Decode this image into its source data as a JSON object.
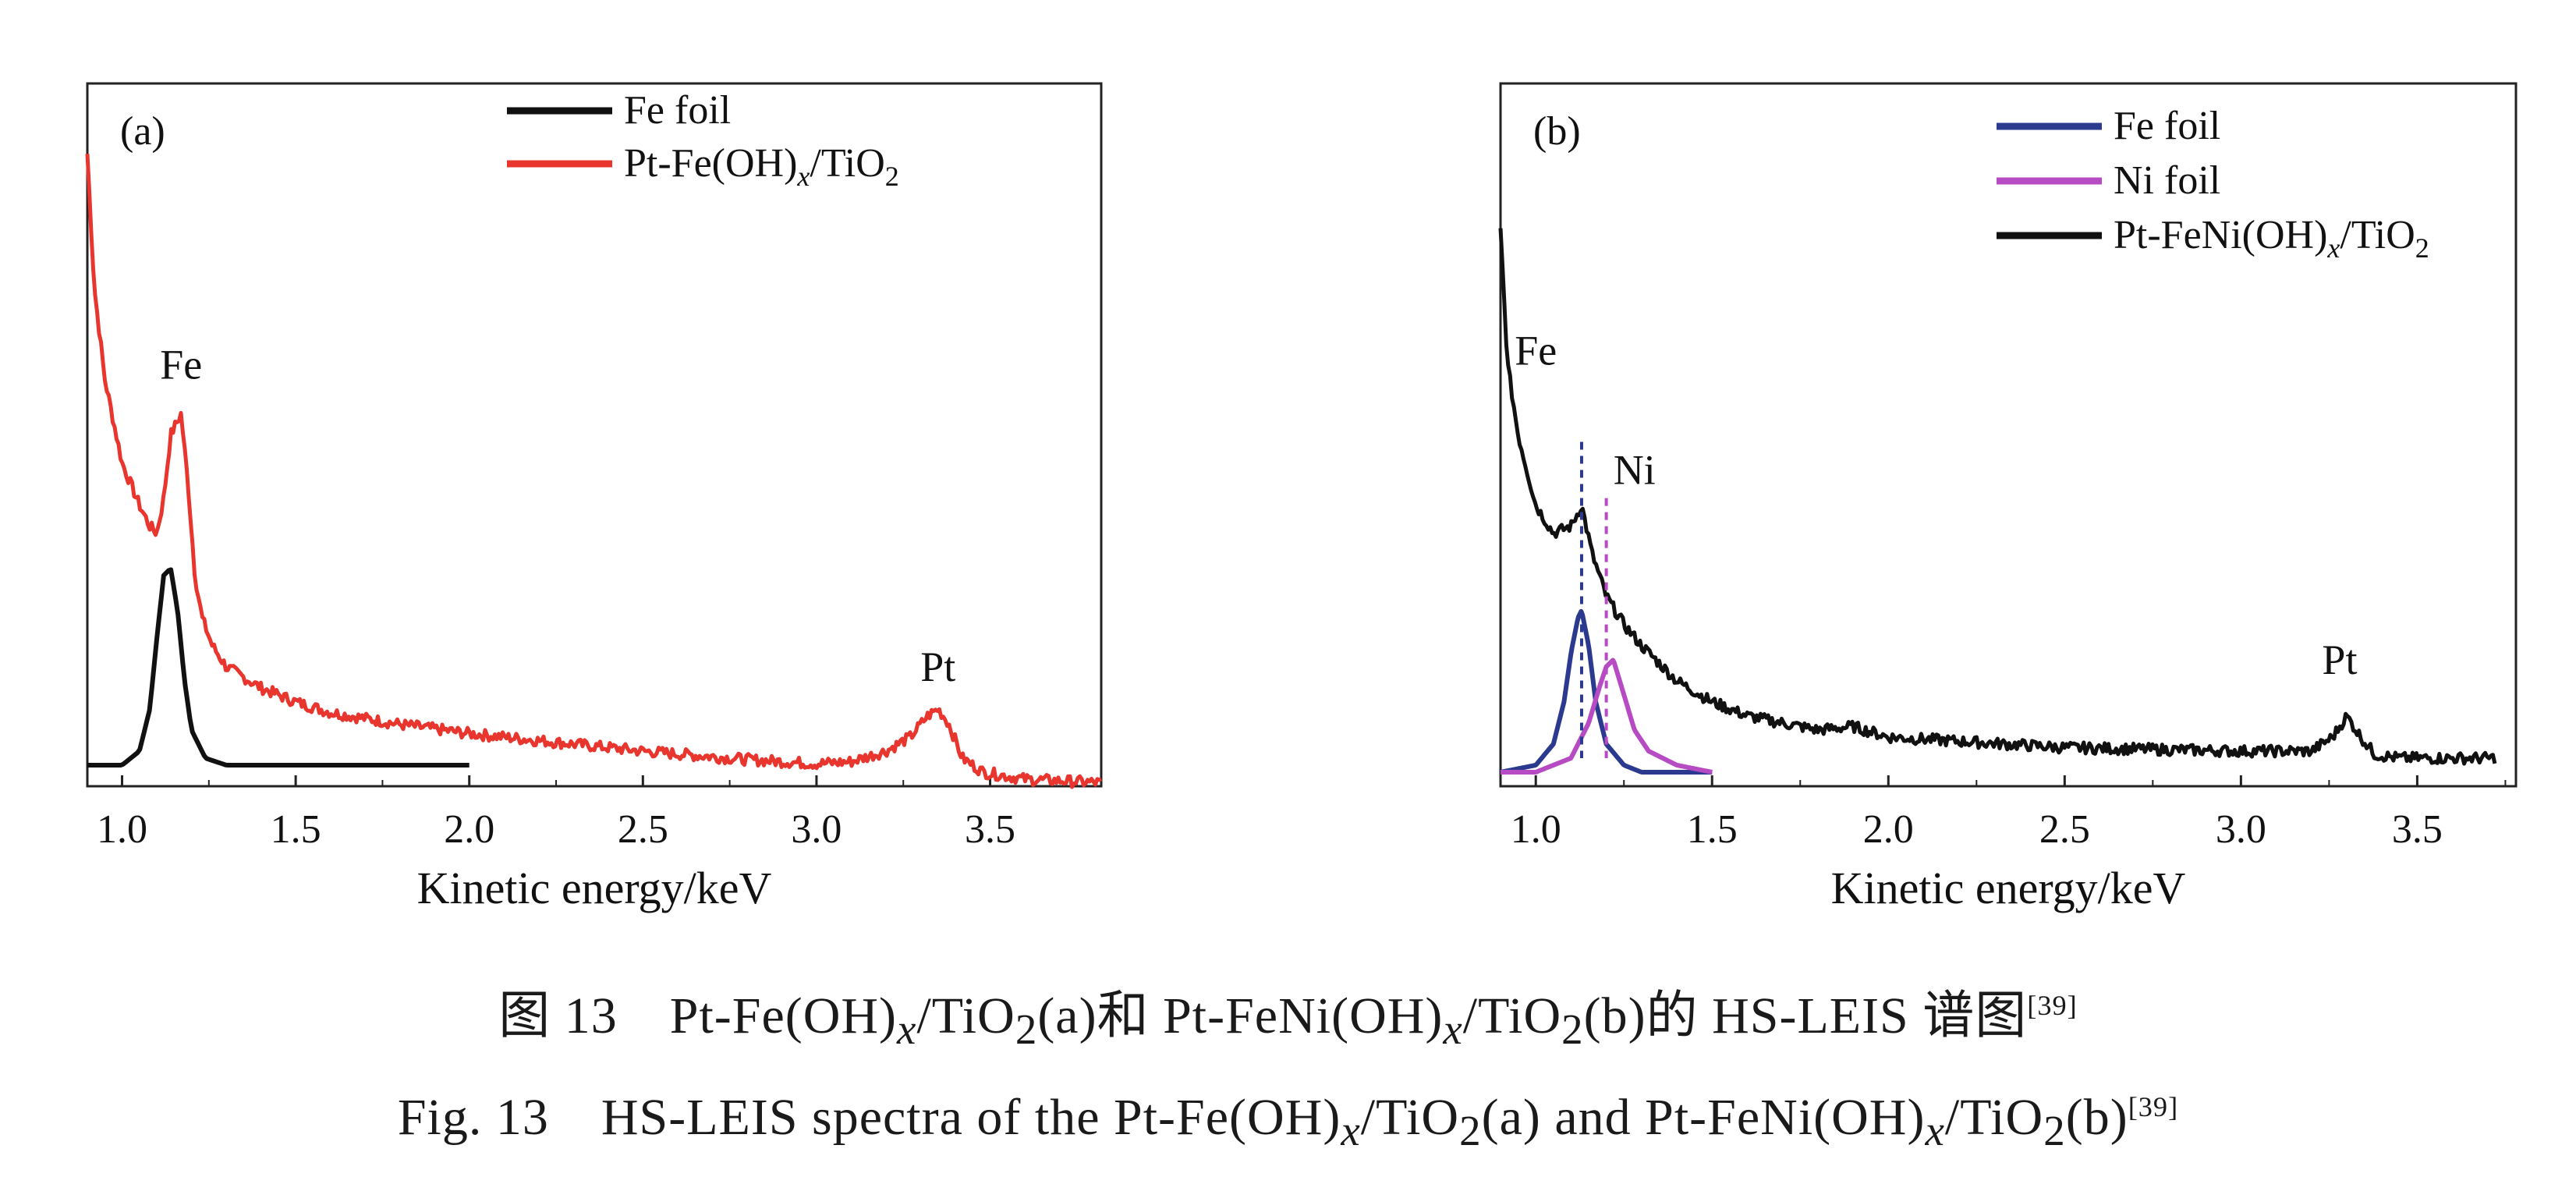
{
  "chart_data": [
    {
      "type": "line",
      "panel_label": "(a)",
      "xlabel": "Kinetic energy/keV",
      "ylabel": "",
      "xlim": [
        0.9,
        3.82
      ],
      "ylim": [
        0,
        100
      ],
      "xticks": [
        1.0,
        1.5,
        2.0,
        2.5,
        3.0,
        3.5
      ],
      "xtick_labels": [
        "1.0",
        "1.5",
        "2.0",
        "2.5",
        "3.0",
        "3.5"
      ],
      "grid": false,
      "legend_position": "top-center",
      "legend_entries": [
        {
          "series": "Fe foil",
          "text_main": "Fe foil",
          "sub1": "",
          "mid": "",
          "sub2": ""
        },
        {
          "series": "Pt-Fe(OH)x/TiO2",
          "text_main": "Pt-Fe(OH)",
          "sub1": "x",
          "mid": "/TiO",
          "sub2": "2"
        }
      ],
      "series": [
        {
          "name": "Fe foil",
          "color": "#111111",
          "x": [
            0.9,
            1.0,
            1.05,
            1.08,
            1.1,
            1.12,
            1.14,
            1.16,
            1.18,
            1.2,
            1.24,
            1.3,
            1.5,
            2.0
          ],
          "y": [
            3,
            3,
            5,
            11,
            21,
            30,
            31,
            25,
            15,
            8,
            4,
            3,
            3,
            3
          ]
        },
        {
          "name": "Pt-Fe(OH)x/TiO2",
          "color": "#e8362e",
          "noisy": true,
          "x": [
            0.9,
            0.92,
            0.95,
            1.0,
            1.05,
            1.08,
            1.1,
            1.12,
            1.14,
            1.17,
            1.19,
            1.21,
            1.23,
            1.26,
            1.3,
            1.4,
            1.5,
            1.6,
            1.8,
            2.0,
            2.2,
            2.5,
            2.8,
            3.0,
            3.1,
            3.2,
            3.27,
            3.32,
            3.35,
            3.38,
            3.42,
            3.48,
            3.6,
            3.82
          ],
          "y": [
            90,
            71,
            58,
            46,
            40,
            37,
            36,
            41,
            50,
            53,
            43,
            30,
            24,
            20,
            17,
            14,
            12,
            10.5,
            8.8,
            7.5,
            6.5,
            5,
            3.8,
            3.2,
            3.5,
            5,
            7,
            10,
            11,
            9,
            4,
            2,
            1,
            0.5
          ]
        }
      ],
      "annotations": [
        {
          "text": "Fe",
          "x": 1.17,
          "y": 58
        },
        {
          "text": "Pt",
          "x": 3.35,
          "y": 15
        }
      ]
    },
    {
      "type": "line",
      "panel_label": "(b)",
      "xlabel": "Kinetic energy/keV",
      "ylabel": "",
      "xlim": [
        0.9,
        3.78
      ],
      "ylim": [
        0,
        100
      ],
      "xticks": [
        1.0,
        1.5,
        2.0,
        2.5,
        3.0,
        3.5
      ],
      "xtick_labels": [
        "1.0",
        "1.5",
        "2.0",
        "2.5",
        "3.0",
        "3.5"
      ],
      "grid": false,
      "legend_position": "top-right",
      "legend_entries": [
        {
          "series": "Fe foil",
          "text_main": "Fe foil",
          "sub1": "",
          "mid": "",
          "sub2": ""
        },
        {
          "series": "Ni foil",
          "text_main": "Ni foil",
          "sub1": "",
          "mid": "",
          "sub2": ""
        },
        {
          "series": "Pt-FeNi(OH)x/TiO2",
          "text_main": "Pt-FeNi(OH)",
          "sub1": "x",
          "mid": "/TiO",
          "sub2": "2"
        }
      ],
      "series": [
        {
          "name": "Fe foil",
          "color": "#2b3a8f",
          "x": [
            0.9,
            1.0,
            1.05,
            1.08,
            1.1,
            1.12,
            1.13,
            1.15,
            1.17,
            1.2,
            1.25,
            1.3,
            1.5
          ],
          "y": [
            2,
            3,
            6,
            12,
            19,
            24,
            25,
            20,
            12,
            6,
            3,
            2,
            2
          ]
        },
        {
          "name": "Ni foil",
          "color": "#b64bc3",
          "x": [
            0.9,
            1.0,
            1.1,
            1.15,
            1.18,
            1.2,
            1.22,
            1.25,
            1.28,
            1.32,
            1.4,
            1.5
          ],
          "y": [
            2,
            2,
            4,
            9,
            14,
            17,
            18,
            13,
            8,
            5,
            3,
            2
          ]
        },
        {
          "name": "Pt-FeNi(OH)x/TiO2",
          "color": "#111111",
          "noisy": true,
          "x": [
            0.9,
            0.92,
            0.95,
            1.0,
            1.05,
            1.1,
            1.13,
            1.16,
            1.2,
            1.25,
            1.3,
            1.4,
            1.5,
            1.6,
            1.8,
            1.9,
            2.0,
            2.5,
            3.0,
            3.2,
            3.26,
            3.3,
            3.34,
            3.38,
            3.45,
            3.6,
            3.72
          ],
          "y": [
            79,
            60,
            50,
            40,
            36,
            37,
            40,
            33,
            27,
            23,
            20,
            15,
            12,
            10,
            8,
            8.5,
            7,
            5.5,
            5,
            5,
            7,
            10,
            7,
            4.5,
            4,
            4,
            4
          ]
        }
      ],
      "markers": [
        {
          "x": 1.13,
          "y_top": 49,
          "color": "#2b3a8f"
        },
        {
          "x": 1.2,
          "y_top": 41,
          "color": "#b64bc3"
        }
      ],
      "annotations": [
        {
          "text": "Fe",
          "x": 1.0,
          "y": 60
        },
        {
          "text": "Ni",
          "x": 1.28,
          "y": 43
        },
        {
          "text": "Pt",
          "x": 3.28,
          "y": 16
        }
      ]
    }
  ],
  "captions": {
    "cn": {
      "t1": "图 13　Pt-Fe(OH)",
      "s1": "x",
      "t2": "/TiO",
      "s2": "2",
      "t3": "(a)和 Pt-FeNi(OH)",
      "s3": "x",
      "t4": "/TiO",
      "s4": "2",
      "t5": "(b)的 HS-LEIS 谱图",
      "ref": "[39]"
    },
    "en": {
      "t1": "Fig. 13　HS-LEIS spectra of the Pt-Fe(OH)",
      "s1": "x",
      "t2": "/TiO",
      "s2": "2",
      "t3": "(a) and Pt-FeNi(OH)",
      "s3": "x",
      "t4": "/TiO",
      "s4": "2",
      "t5": "(b)",
      "ref": "[39]"
    }
  }
}
